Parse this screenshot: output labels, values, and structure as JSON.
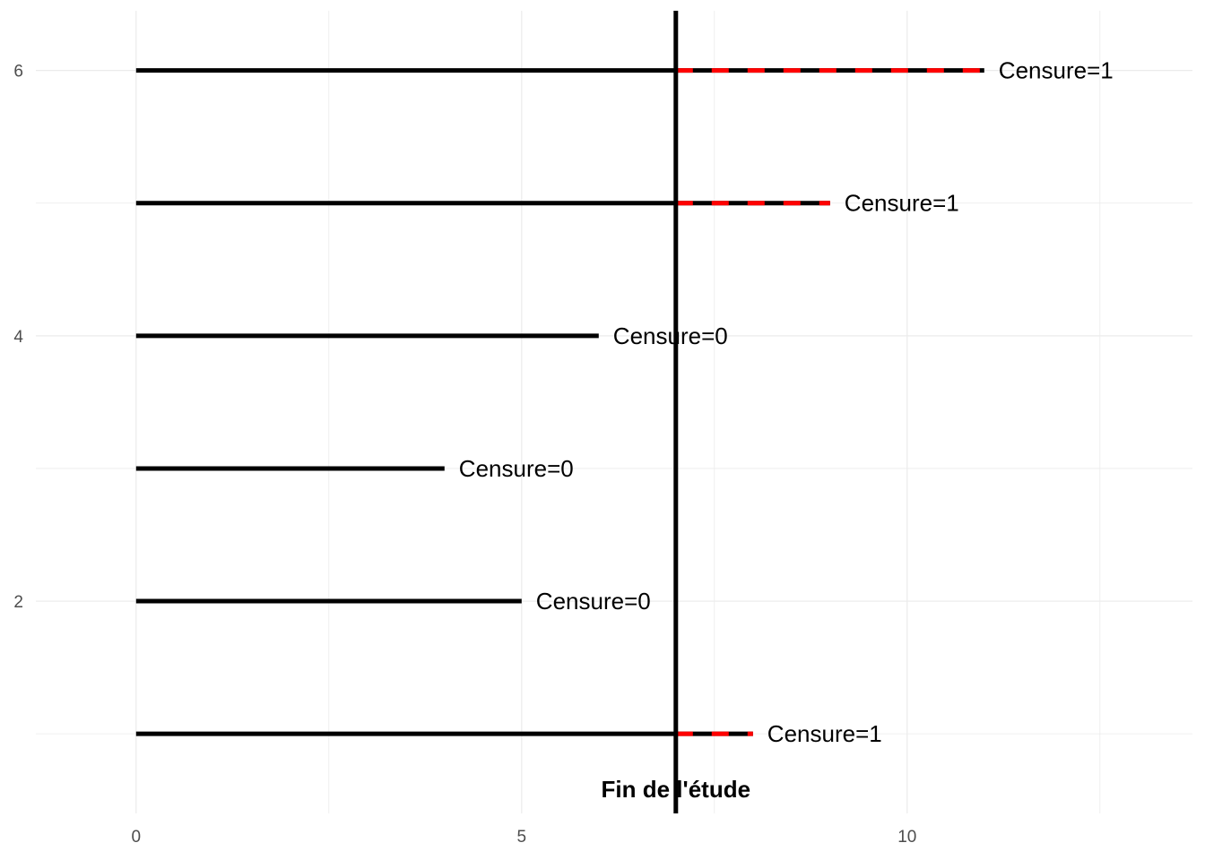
{
  "chart_data": {
    "type": "line",
    "title": "",
    "xlabel": "",
    "ylabel": "",
    "xlim": [
      -1.3,
      13.7
    ],
    "ylim": [
      0.4,
      6.45
    ],
    "x_ticks": [
      0,
      5,
      10
    ],
    "y_ticks": [
      2,
      4,
      6
    ],
    "grid": true,
    "end_of_study": {
      "x": 7,
      "label": "Fin de l'étude"
    },
    "subjects": [
      {
        "id": 1,
        "start": 0,
        "end": 8,
        "censure": 1,
        "label": "Censure=1"
      },
      {
        "id": 2,
        "start": 0,
        "end": 5,
        "censure": 0,
        "label": "Censure=0"
      },
      {
        "id": 3,
        "start": 0,
        "end": 4,
        "censure": 0,
        "label": "Censure=0"
      },
      {
        "id": 4,
        "start": 0,
        "end": 6,
        "censure": 0,
        "label": "Censure=0"
      },
      {
        "id": 5,
        "start": 0,
        "end": 9,
        "censure": 1,
        "label": "Censure=1"
      },
      {
        "id": 6,
        "start": 0,
        "end": 11,
        "censure": 1,
        "label": "Censure=1"
      }
    ],
    "colors": {
      "segment": "#000000",
      "censored_dash": "#ff0000",
      "grid": "#ebebeb",
      "tick_text": "#4d4d4d"
    }
  }
}
